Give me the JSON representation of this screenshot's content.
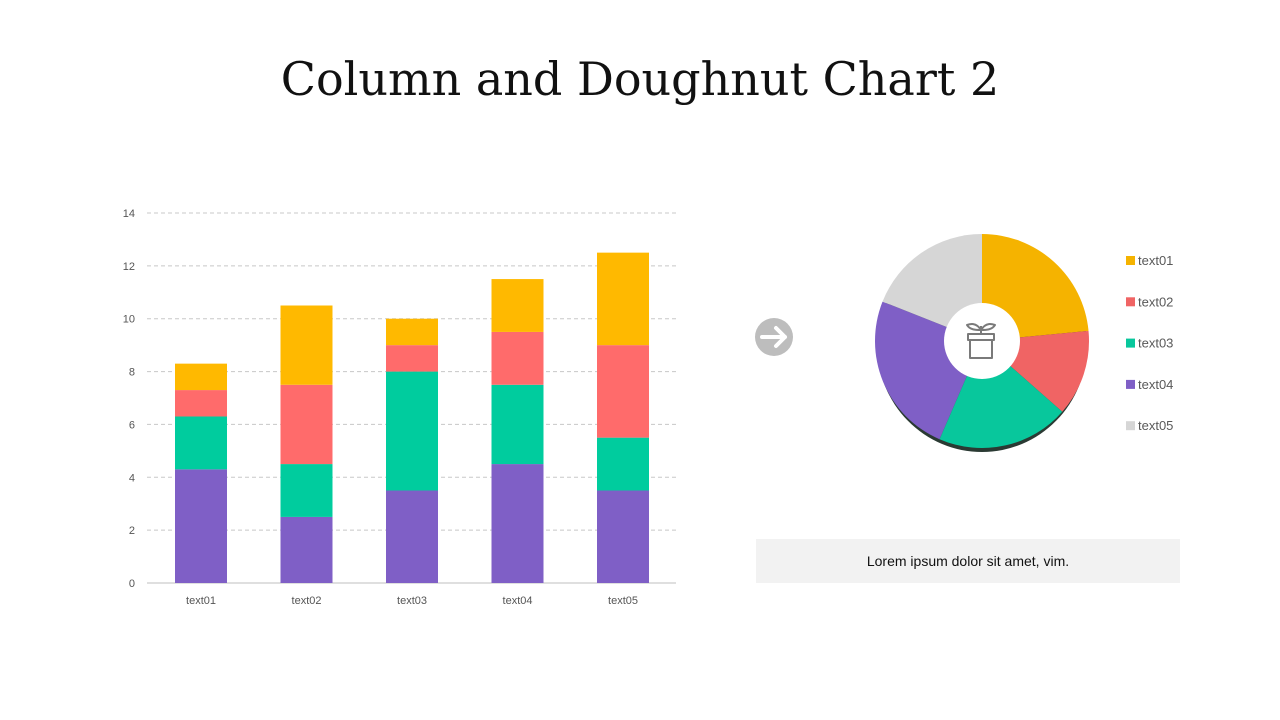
{
  "title": "Column and Doughnut Chart 2",
  "caption": "Lorem ipsum dolor sit amet, vim.",
  "chart_data": [
    {
      "type": "bar",
      "stacked": true,
      "categories": [
        "text01",
        "text02",
        "text03",
        "text04",
        "text05"
      ],
      "series": [
        {
          "name": "text04",
          "color": "#7f5fc6",
          "values": [
            4.3,
            2.5,
            3.5,
            4.5,
            3.5
          ]
        },
        {
          "name": "text03",
          "color": "#00cc9e",
          "values": [
            2,
            2,
            4.5,
            3,
            2
          ]
        },
        {
          "name": "text02",
          "color": "#ff6b6b",
          "values": [
            1,
            3,
            1,
            2,
            3.5
          ]
        },
        {
          "name": "text01",
          "color": "#ffb900",
          "values": [
            1,
            3,
            1,
            2,
            3.5
          ]
        }
      ],
      "ylim": [
        0,
        14
      ],
      "yticks": [
        0,
        2,
        4,
        6,
        8,
        10,
        12,
        14
      ],
      "grid": true
    },
    {
      "type": "pie",
      "doughnut": true,
      "labels": [
        "text01",
        "text02",
        "text03",
        "text04",
        "text05"
      ],
      "values": [
        23.5,
        13,
        20,
        24.5,
        19
      ],
      "colors": [
        "#f5b300",
        "#f06464",
        "#08c79c",
        "#7f5fc6",
        "#d6d6d6"
      ],
      "legend": "right"
    }
  ]
}
